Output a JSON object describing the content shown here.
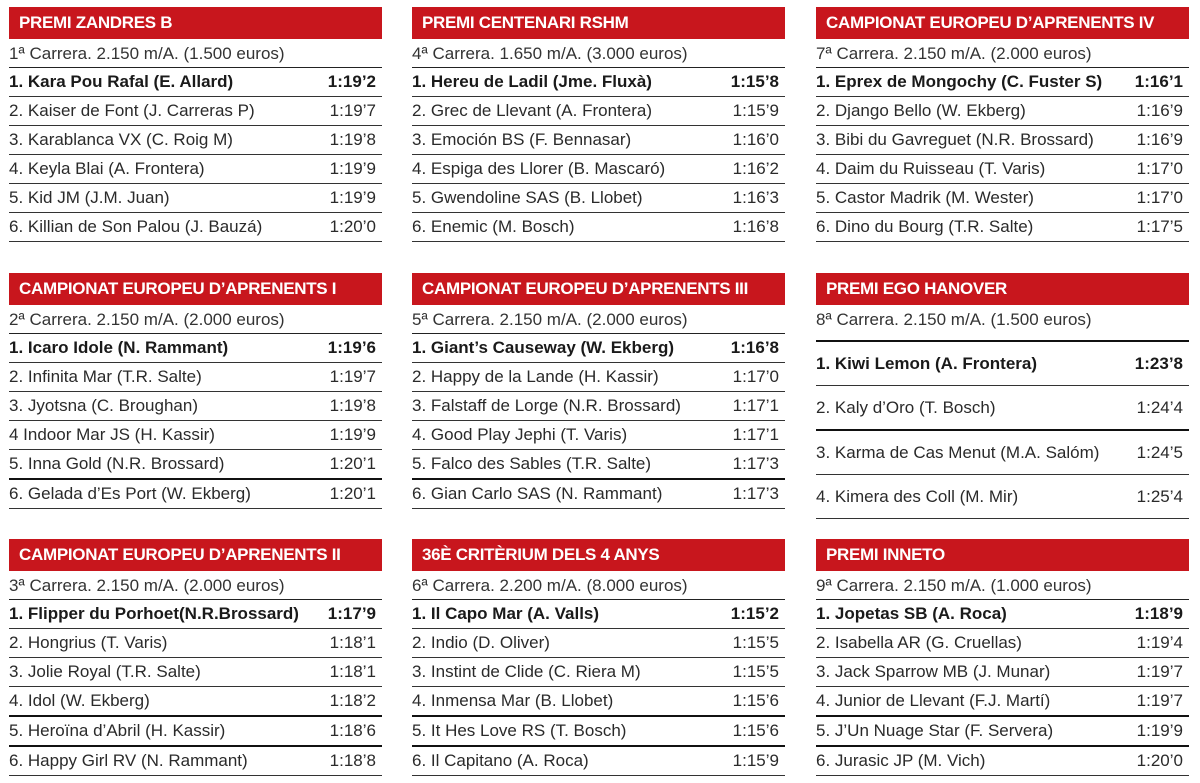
{
  "races": [
    {
      "title": "PREMI ZANDRES B",
      "subtitle": "1ª Carrera. 2.150 m/A. (1.500 euros)",
      "results": [
        {
          "name": "1. Kara Pou Rafal (E. Allard)",
          "time": "1:19’2"
        },
        {
          "name": "2. Kaiser de Font (J. Carreras P)",
          "time": "1:19’7"
        },
        {
          "name": "3. Karablanca VX (C. Roig M)",
          "time": "1:19’8"
        },
        {
          "name": "4. Keyla Blai (A. Frontera)",
          "time": "1:19’9"
        },
        {
          "name": "5. Kid JM (J.M. Juan)",
          "time": "1:19’9"
        },
        {
          "name": "6. Killian de Son Palou (J. Bauzá)",
          "time": "1:20’0"
        }
      ]
    },
    {
      "title": "PREMI CENTENARI RSHM",
      "subtitle": "4ª Carrera. 1.650 m/A. (3.000 euros)",
      "results": [
        {
          "name": "1. Hereu de Ladil (Jme. Fluxà)",
          "time": "1:15’8"
        },
        {
          "name": "2. Grec de Llevant (A. Frontera)",
          "time": "1:15’9"
        },
        {
          "name": "3. Emoción BS (F. Bennasar)",
          "time": "1:16’0"
        },
        {
          "name": "4. Espiga des Llorer (B. Mascaró)",
          "time": "1:16’2"
        },
        {
          "name": "5. Gwendoline SAS (B. Llobet)",
          "time": "1:16’3"
        },
        {
          "name": "6. Enemic (M. Bosch)",
          "time": "1:16’8"
        }
      ]
    },
    {
      "title": "CAMPIONAT EUROPEU D’APRENENTS IV",
      "subtitle": "7ª Carrera. 2.150 m/A. (2.000 euros)",
      "results": [
        {
          "name": "1. Eprex de Mongochy (C. Fuster S)",
          "time": "1:16’1"
        },
        {
          "name": "2. Django Bello (W. Ekberg)",
          "time": "1:16’9"
        },
        {
          "name": "3. Bibi du Gavreguet (N.R. Brossard)",
          "time": "1:16’9"
        },
        {
          "name": "4. Daim du Ruisseau (T. Varis)",
          "time": "1:17’0"
        },
        {
          "name": "5. Castor Madrik (M. Wester)",
          "time": "1:17’0"
        },
        {
          "name": "6. Dino du Bourg (T.R. Salte)",
          "time": "1:17’5"
        }
      ]
    },
    {
      "title": "CAMPIONAT EUROPEU D’APRENENTS I",
      "subtitle": "2ª Carrera. 2.150 m/A. (2.000 euros)",
      "results": [
        {
          "name": "1. Icaro Idole (N. Rammant)",
          "time": "1:19’6"
        },
        {
          "name": "2. Infinita Mar (T.R. Salte)",
          "time": "1:19’7"
        },
        {
          "name": "3. Jyotsna (C. Broughan)",
          "time": "1:19’8"
        },
        {
          "name": "4 Indoor Mar JS (H. Kassir)",
          "time": "1:19’9"
        },
        {
          "name": "5. Inna Gold (N.R. Brossard)",
          "time": "1:20’1"
        },
        {
          "name": "6. Gelada d’Es Port (W. Ekberg)",
          "time": "1:20’1"
        }
      ]
    },
    {
      "title": "CAMPIONAT EUROPEU D’APRENENTS III",
      "subtitle": "5ª Carrera. 2.150 m/A. (2.000 euros)",
      "results": [
        {
          "name": "1. Giant’s Causeway (W. Ekberg)",
          "time": "1:16’8"
        },
        {
          "name": "2. Happy de la Lande (H. Kassir)",
          "time": "1:17’0"
        },
        {
          "name": "3. Falstaff de Lorge (N.R. Brossard)",
          "time": "1:17’1"
        },
        {
          "name": "4. Good Play Jephi (T. Varis)",
          "time": "1:17’1"
        },
        {
          "name": "5. Falco des Sables (T.R. Salte)",
          "time": "1:17’3"
        },
        {
          "name": "6. Gian Carlo SAS (N. Rammant)",
          "time": "1:17’3"
        }
      ]
    },
    {
      "title": "PREMI EGO HANOVER",
      "subtitle": "8ª Carrera. 2.150 m/A. (1.500 euros)",
      "results": [
        {
          "name": "1. Kiwi Lemon (A. Frontera)",
          "time": "1:23’8"
        },
        {
          "name": "2. Kaly d’Oro (T. Bosch)",
          "time": "1:24’4"
        },
        {
          "name": "3. Karma de Cas Menut (M.A. Salóm)",
          "time": "1:24’5"
        },
        {
          "name": "4.  Kimera des Coll (M. Mir)",
          "time": "1:25’4"
        }
      ]
    },
    {
      "title": "CAMPIONAT EUROPEU D’APRENENTS II",
      "subtitle": "3ª Carrera. 2.150 m/A. (2.000 euros)",
      "results": [
        {
          "name": "1. Flipper du Porhoet(N.R.Brossard)",
          "time": "1:17’9"
        },
        {
          "name": "2. Hongrius (T. Varis)",
          "time": "1:18’1"
        },
        {
          "name": "3. Jolie Royal (T.R. Salte)",
          "time": "1:18’1"
        },
        {
          "name": "4. Idol (W. Ekberg)",
          "time": "1:18’2"
        },
        {
          "name": "5. Heroïna d’Abril (H. Kassir)",
          "time": "1:18’6"
        },
        {
          "name": "6. Happy Girl RV (N. Rammant)",
          "time": "1:18’8"
        }
      ]
    },
    {
      "title": "36È CRITÈRIUM DELS 4 ANYS",
      "subtitle": "6ª Carrera. 2.200 m/A. (8.000 euros)",
      "results": [
        {
          "name": "1. Il Capo Mar (A. Valls)",
          "time": "1:15’2"
        },
        {
          "name": "2. Indio (D. Oliver)",
          "time": "1:15’5"
        },
        {
          "name": "3. Instint de Clide (C. Riera M)",
          "time": "1:15’5"
        },
        {
          "name": "4. Inmensa Mar (B. Llobet)",
          "time": "1:15’6"
        },
        {
          "name": "5. It Hes Love RS (T. Bosch)",
          "time": "1:15’6"
        },
        {
          "name": "6. Il Capitano (A. Roca)",
          "time": "1:15’9"
        }
      ]
    },
    {
      "title": "PREMI INNETO",
      "subtitle": "9ª Carrera. 2.150 m/A. (1.000 euros)",
      "results": [
        {
          "name": "1. Jopetas SB (A. Roca)",
          "time": "1:18’9"
        },
        {
          "name": "2. Isabella AR (G. Cruellas)",
          "time": "1:19’4"
        },
        {
          "name": "3. Jack Sparrow MB (J. Munar)",
          "time": "1:19’7"
        },
        {
          "name": "4. Junior de Llevant (F.J. Martí)",
          "time": "1:19’7"
        },
        {
          "name": "5. J’Un Nuage Star (F. Servera)",
          "time": "1:19’9"
        },
        {
          "name": "6. Jurasic JP (M. Vich)",
          "time": "1:20’0"
        }
      ]
    }
  ],
  "colors": {
    "header_bg": "#c8161d",
    "header_text": "#ffffff",
    "rule": "#222222"
  }
}
